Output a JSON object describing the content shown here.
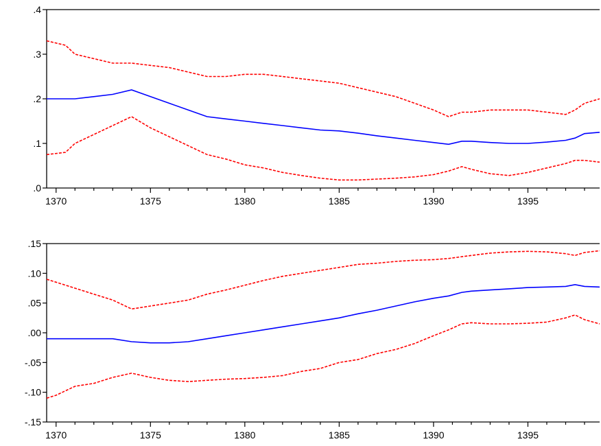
{
  "chart_data": [
    {
      "type": "line",
      "title": "",
      "xlabel": "",
      "ylabel": "",
      "xlim": [
        1369.5,
        1398.8
      ],
      "ylim": [
        0.0,
        0.4
      ],
      "y_ticks": [
        0.0,
        0.1,
        0.2,
        0.3,
        0.4
      ],
      "y_tick_labels": [
        ".0",
        ".1",
        ".2",
        ".3",
        ".4"
      ],
      "x_ticks": [
        1370,
        1375,
        1380,
        1385,
        1390,
        1395
      ],
      "x_tick_labels": [
        "1370",
        "1375",
        "1380",
        "1385",
        "1390",
        "1395"
      ],
      "grid": false,
      "series": [
        {
          "color": "#ff0000",
          "style": "dashed",
          "x": [
            1369.5,
            1370.5,
            1371,
            1372,
            1373,
            1374,
            1375,
            1376,
            1377,
            1378,
            1379,
            1380,
            1381,
            1382,
            1383,
            1384,
            1385,
            1386,
            1387,
            1388,
            1389,
            1390,
            1390.8,
            1391.5,
            1392,
            1393,
            1394,
            1395,
            1396,
            1397,
            1397.5,
            1398,
            1398.8
          ],
          "values": [
            0.33,
            0.32,
            0.3,
            0.29,
            0.28,
            0.28,
            0.275,
            0.27,
            0.26,
            0.25,
            0.25,
            0.255,
            0.255,
            0.25,
            0.245,
            0.24,
            0.235,
            0.225,
            0.215,
            0.205,
            0.19,
            0.175,
            0.16,
            0.17,
            0.17,
            0.175,
            0.175,
            0.175,
            0.17,
            0.165,
            0.175,
            0.19,
            0.2
          ]
        },
        {
          "color": "#0000ff",
          "style": "solid",
          "x": [
            1369.5,
            1370,
            1371,
            1372,
            1373,
            1374,
            1375,
            1376,
            1377,
            1378,
            1379,
            1380,
            1381,
            1382,
            1383,
            1384,
            1385,
            1386,
            1387,
            1388,
            1389,
            1390,
            1390.8,
            1391.5,
            1392,
            1393,
            1394,
            1395,
            1396,
            1397,
            1397.5,
            1398,
            1398.8
          ],
          "values": [
            0.2,
            0.2,
            0.2,
            0.205,
            0.21,
            0.22,
            0.205,
            0.19,
            0.175,
            0.16,
            0.155,
            0.15,
            0.145,
            0.14,
            0.135,
            0.13,
            0.128,
            0.123,
            0.117,
            0.112,
            0.107,
            0.102,
            0.098,
            0.105,
            0.105,
            0.102,
            0.1,
            0.1,
            0.103,
            0.107,
            0.112,
            0.122,
            0.125
          ]
        },
        {
          "color": "#ff0000",
          "style": "dashed",
          "x": [
            1369.5,
            1370.5,
            1371,
            1372,
            1373,
            1374,
            1375,
            1376,
            1377,
            1378,
            1379,
            1380,
            1381,
            1382,
            1383,
            1384,
            1385,
            1386,
            1387,
            1388,
            1389,
            1390,
            1390.8,
            1391.5,
            1392,
            1393,
            1394,
            1395,
            1396,
            1397,
            1397.5,
            1398,
            1398.8
          ],
          "values": [
            0.075,
            0.08,
            0.1,
            0.12,
            0.14,
            0.16,
            0.135,
            0.115,
            0.095,
            0.075,
            0.065,
            0.052,
            0.045,
            0.035,
            0.028,
            0.022,
            0.018,
            0.018,
            0.02,
            0.022,
            0.025,
            0.03,
            0.038,
            0.048,
            0.042,
            0.032,
            0.028,
            0.035,
            0.045,
            0.055,
            0.062,
            0.062,
            0.058
          ]
        }
      ]
    },
    {
      "type": "line",
      "title": "",
      "xlabel": "",
      "ylabel": "",
      "xlim": [
        1369.5,
        1398.8
      ],
      "ylim": [
        -0.15,
        0.15
      ],
      "y_ticks": [
        -0.15,
        -0.1,
        -0.05,
        0.0,
        0.05,
        0.1,
        0.15
      ],
      "y_tick_labels": [
        "-.15",
        "-.10",
        "-.05",
        ".00",
        ".05",
        ".10",
        ".15"
      ],
      "x_ticks": [
        1370,
        1375,
        1380,
        1385,
        1390,
        1395
      ],
      "x_tick_labels": [
        "1370",
        "1375",
        "1380",
        "1385",
        "1390",
        "1395"
      ],
      "grid": false,
      "series": [
        {
          "color": "#ff0000",
          "style": "dashed",
          "x": [
            1369.5,
            1370,
            1371,
            1372,
            1373,
            1374,
            1375,
            1376,
            1377,
            1378,
            1379,
            1380,
            1381,
            1382,
            1383,
            1384,
            1385,
            1386,
            1387,
            1388,
            1389,
            1390,
            1390.8,
            1391.5,
            1392,
            1393,
            1394,
            1395,
            1396,
            1397,
            1397.5,
            1398,
            1398.8
          ],
          "values": [
            0.09,
            0.085,
            0.075,
            0.065,
            0.055,
            0.04,
            0.045,
            0.05,
            0.055,
            0.065,
            0.072,
            0.08,
            0.088,
            0.095,
            0.1,
            0.105,
            0.11,
            0.115,
            0.117,
            0.12,
            0.122,
            0.123,
            0.125,
            0.128,
            0.13,
            0.134,
            0.136,
            0.137,
            0.136,
            0.133,
            0.13,
            0.135,
            0.138
          ]
        },
        {
          "color": "#0000ff",
          "style": "solid",
          "x": [
            1369.5,
            1370,
            1371,
            1372,
            1373,
            1374,
            1375,
            1376,
            1377,
            1378,
            1379,
            1380,
            1381,
            1382,
            1383,
            1384,
            1385,
            1386,
            1387,
            1388,
            1389,
            1390,
            1390.8,
            1391.5,
            1392,
            1393,
            1394,
            1395,
            1396,
            1397,
            1397.5,
            1398,
            1398.8
          ],
          "values": [
            -0.01,
            -0.01,
            -0.01,
            -0.01,
            -0.01,
            -0.015,
            -0.017,
            -0.017,
            -0.015,
            -0.01,
            -0.005,
            0.0,
            0.005,
            0.01,
            0.015,
            0.02,
            0.025,
            0.032,
            0.038,
            0.045,
            0.052,
            0.058,
            0.062,
            0.068,
            0.07,
            0.072,
            0.074,
            0.076,
            0.077,
            0.078,
            0.081,
            0.078,
            0.077
          ]
        },
        {
          "color": "#ff0000",
          "style": "dashed",
          "x": [
            1369.5,
            1370,
            1371,
            1372,
            1373,
            1374,
            1375,
            1376,
            1377,
            1378,
            1379,
            1380,
            1381,
            1382,
            1383,
            1384,
            1385,
            1386,
            1387,
            1388,
            1389,
            1390,
            1390.8,
            1391.5,
            1392,
            1393,
            1394,
            1395,
            1396,
            1397,
            1397.5,
            1398,
            1398.8
          ],
          "values": [
            -0.11,
            -0.105,
            -0.09,
            -0.085,
            -0.075,
            -0.068,
            -0.075,
            -0.08,
            -0.082,
            -0.08,
            -0.078,
            -0.077,
            -0.075,
            -0.072,
            -0.065,
            -0.06,
            -0.05,
            -0.045,
            -0.035,
            -0.028,
            -0.018,
            -0.005,
            0.005,
            0.015,
            0.017,
            0.015,
            0.015,
            0.016,
            0.018,
            0.025,
            0.03,
            0.022,
            0.015
          ]
        }
      ]
    }
  ]
}
